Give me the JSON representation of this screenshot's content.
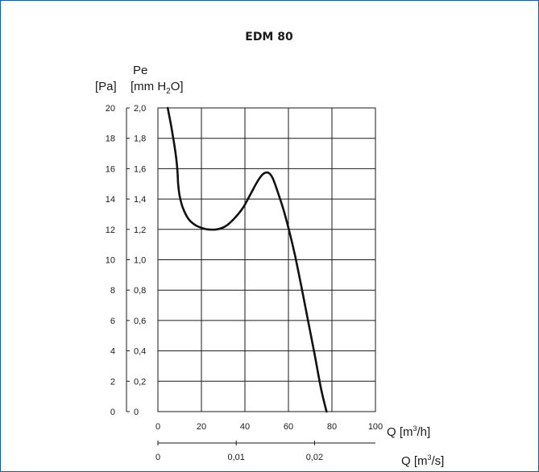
{
  "chart_data": {
    "type": "line",
    "title": "EDM 80",
    "y_quantity": "Pe",
    "y_unit_pa": "[Pa]",
    "y_unit_mm_lead": "[mm H",
    "y_unit_mm_sub": "2",
    "y_unit_mm_tail": "O]",
    "x_label_main": "Q [m",
    "x_label_main_sup": "3",
    "x_label_main_tail": "/h]",
    "x_label_secondary": "Q [m",
    "x_label_secondary_sup": "3",
    "x_label_secondary_tail": "/s]",
    "xlim": [
      0,
      100
    ],
    "ylim": [
      0,
      2.0
    ],
    "grid": true,
    "x_ticks": [
      "0",
      "20",
      "40",
      "60",
      "80",
      "100"
    ],
    "x_tick_values": [
      0,
      20,
      40,
      60,
      80,
      100
    ],
    "y_ticks_mm": [
      "0",
      "0,2",
      "0,4",
      "0,6",
      "0,8",
      "1,0",
      "1,2",
      "1,4",
      "1,6",
      "1,8",
      "2,0"
    ],
    "y_tick_values_mm": [
      0,
      0.2,
      0.4,
      0.6,
      0.8,
      1.0,
      1.2,
      1.4,
      1.6,
      1.8,
      2.0
    ],
    "y_ticks_pa": [
      "0",
      "2",
      "4",
      "6",
      "8",
      "10",
      "12",
      "14",
      "16",
      "18",
      "20"
    ],
    "x_secondary_ticks": [
      "0",
      "0,01",
      "0,02"
    ],
    "x_secondary_tick_values": [
      0,
      36,
      72
    ],
    "series": [
      {
        "x": [
          4.5,
          6.0,
          7.5,
          8.5,
          9.0,
          9.3,
          10.0,
          11.5,
          14.0,
          17.0,
          20.0,
          23.0,
          27.0,
          31.0,
          35.0,
          39.0,
          42.5,
          45.5,
          48.0,
          50.0,
          51.5,
          53.0,
          55.0,
          57.5,
          60.0,
          63.0,
          66.0,
          69.0,
          72.0,
          75.0,
          77.5
        ],
        "y": [
          2.0,
          1.89,
          1.76,
          1.66,
          1.58,
          1.5,
          1.42,
          1.34,
          1.27,
          1.23,
          1.21,
          1.2,
          1.2,
          1.22,
          1.27,
          1.34,
          1.43,
          1.51,
          1.56,
          1.575,
          1.565,
          1.53,
          1.45,
          1.34,
          1.21,
          1.03,
          0.82,
          0.6,
          0.38,
          0.15,
          0.0
        ]
      }
    ]
  }
}
